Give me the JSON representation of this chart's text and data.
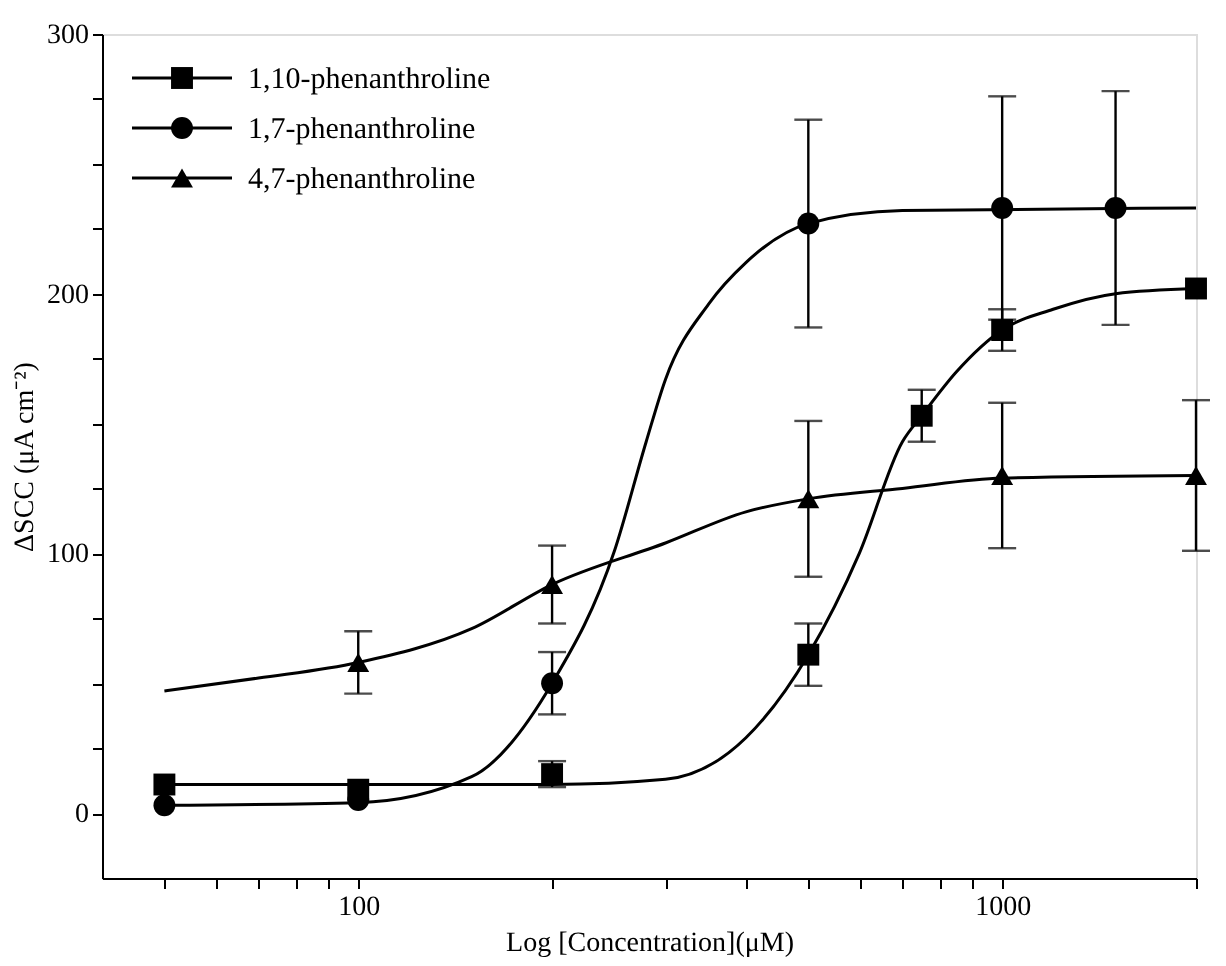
{
  "chart_data": {
    "type": "scatter",
    "xlabel": "Log [Concentration](μM)",
    "ylabel": "ΔSCC (μA cm⁻²)",
    "log": "x",
    "xlim": [
      40,
      2000
    ],
    "ylim": [
      -25,
      300
    ],
    "xticks": [
      {
        "value": 50,
        "label": null
      },
      {
        "value": 60,
        "label": null
      },
      {
        "value": 70,
        "label": null
      },
      {
        "value": 80,
        "label": null
      },
      {
        "value": 90,
        "label": null
      },
      100,
      {
        "value": 200,
        "label": null
      },
      {
        "value": 300,
        "label": null
      },
      {
        "value": 400,
        "label": null
      },
      {
        "value": 500,
        "label": null
      },
      {
        "value": 600,
        "label": null
      },
      {
        "value": 700,
        "label": null
      },
      {
        "value": 800,
        "label": null
      },
      {
        "value": 900,
        "label": null
      },
      1000,
      {
        "value": 2000,
        "label": null
      }
    ],
    "yticks": [
      0,
      {
        "value": 25,
        "label": null
      },
      {
        "value": 50,
        "label": null
      },
      {
        "value": 75,
        "label": null
      },
      100,
      {
        "value": 125,
        "label": null
      },
      {
        "value": 150,
        "label": null
      },
      {
        "value": 175,
        "label": null
      },
      200,
      {
        "value": 225,
        "label": null
      },
      {
        "value": 250,
        "label": null
      },
      {
        "value": 275,
        "label": null
      },
      300
    ],
    "grid": false,
    "legend": "top left",
    "series": [
      {
        "name": "1,10-phenanthroline",
        "marker": "square",
        "color": "#000000",
        "x": [
          50,
          100,
          200,
          500,
          750,
          1000,
          2000
        ],
        "values": [
          11,
          9,
          15,
          61,
          153,
          186,
          202
        ],
        "errors": [
          null,
          null,
          5,
          12,
          10,
          8,
          null
        ]
      },
      {
        "name": "1,7-phenanthroline",
        "marker": "circle",
        "color": "#000000",
        "x": [
          50,
          100,
          200,
          500,
          1000,
          1500
        ],
        "values": [
          3,
          5,
          50,
          227,
          233,
          233
        ],
        "errors": [
          null,
          null,
          12,
          40,
          43,
          45
        ]
      },
      {
        "name": "4,7-phenanthroline",
        "marker": "triangle",
        "color": "#000000",
        "x": [
          100,
          200,
          500,
          1000,
          2000
        ],
        "values": [
          58,
          88,
          121,
          130,
          130
        ],
        "errors": [
          12,
          15,
          30,
          28,
          29
        ]
      },
      {
        "type": "line",
        "marker": "none",
        "color": "#000000",
        "x": [
          50,
          200,
          300,
          400,
          500,
          600,
          700,
          750,
          850,
          1000,
          1200,
          1500,
          2000
        ],
        "values": [
          11,
          11,
          13,
          29,
          61,
          100,
          143,
          153,
          170,
          186,
          194,
          200,
          202
        ]
      },
      {
        "type": "line",
        "marker": "none",
        "color": "#000000",
        "x": [
          50,
          100,
          150,
          200,
          250,
          280,
          300,
          350,
          400,
          500,
          700,
          2000
        ],
        "values": [
          3,
          4,
          14,
          50,
          101,
          143,
          167,
          196,
          212,
          227,
          232,
          233
        ]
      },
      {
        "type": "line",
        "marker": "none",
        "color": "#000000",
        "x": [
          50,
          70,
          100,
          150,
          200,
          300,
          400,
          500,
          700,
          1000,
          2000
        ],
        "values": [
          47,
          52,
          58,
          71,
          88,
          104,
          116,
          121,
          125,
          129,
          130
        ]
      }
    ]
  }
}
